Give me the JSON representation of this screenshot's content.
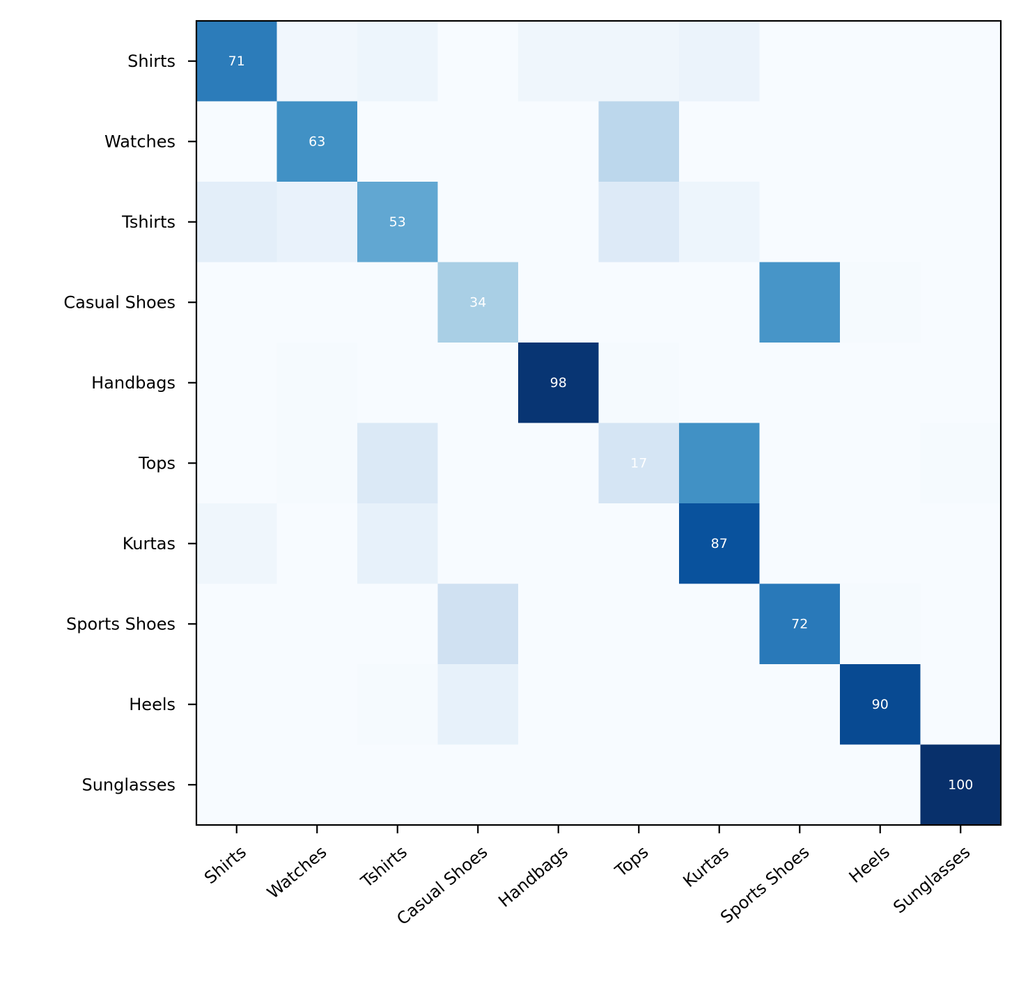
{
  "chart_data": {
    "type": "heatmap",
    "title": "",
    "xlabel": "",
    "ylabel": "",
    "colormap": "Blues",
    "vmin": 0,
    "vmax": 100,
    "x_categories": [
      "Shirts",
      "Watches",
      "Tshirts",
      "Casual Shoes",
      "Handbags",
      "Tops",
      "Kurtas",
      "Sports Shoes",
      "Heels",
      "Sunglasses"
    ],
    "y_categories": [
      "Shirts",
      "Watches",
      "Tshirts",
      "Casual Shoes",
      "Handbags",
      "Tops",
      "Kurtas",
      "Sports Shoes",
      "Heels",
      "Sunglasses"
    ],
    "values": [
      [
        71,
        3,
        5,
        0,
        4,
        4,
        6,
        0,
        0,
        0
      ],
      [
        0,
        63,
        0,
        0,
        0,
        28,
        0,
        0,
        0,
        0
      ],
      [
        10,
        7,
        53,
        0,
        0,
        13,
        5,
        0,
        0,
        0
      ],
      [
        0,
        0,
        0,
        34,
        0,
        0,
        0,
        61,
        1,
        0
      ],
      [
        0,
        1,
        0,
        0,
        98,
        1,
        0,
        0,
        0,
        0
      ],
      [
        0,
        1,
        14,
        0,
        0,
        17,
        63,
        0,
        0,
        1
      ],
      [
        4,
        0,
        8,
        0,
        0,
        0,
        87,
        0,
        0,
        0
      ],
      [
        0,
        0,
        0,
        20,
        0,
        0,
        0,
        72,
        1,
        0
      ],
      [
        0,
        0,
        1,
        8,
        0,
        0,
        0,
        0,
        90,
        0
      ],
      [
        0,
        0,
        0,
        0,
        0,
        0,
        0,
        0,
        0,
        100
      ]
    ],
    "annotated": [
      [
        0,
        0
      ],
      [
        1,
        1
      ],
      [
        2,
        2
      ],
      [
        3,
        3
      ],
      [
        4,
        4
      ],
      [
        5,
        5
      ],
      [
        6,
        6
      ],
      [
        7,
        7
      ],
      [
        8,
        8
      ],
      [
        9,
        9
      ]
    ],
    "grid": false,
    "legend": "none"
  }
}
